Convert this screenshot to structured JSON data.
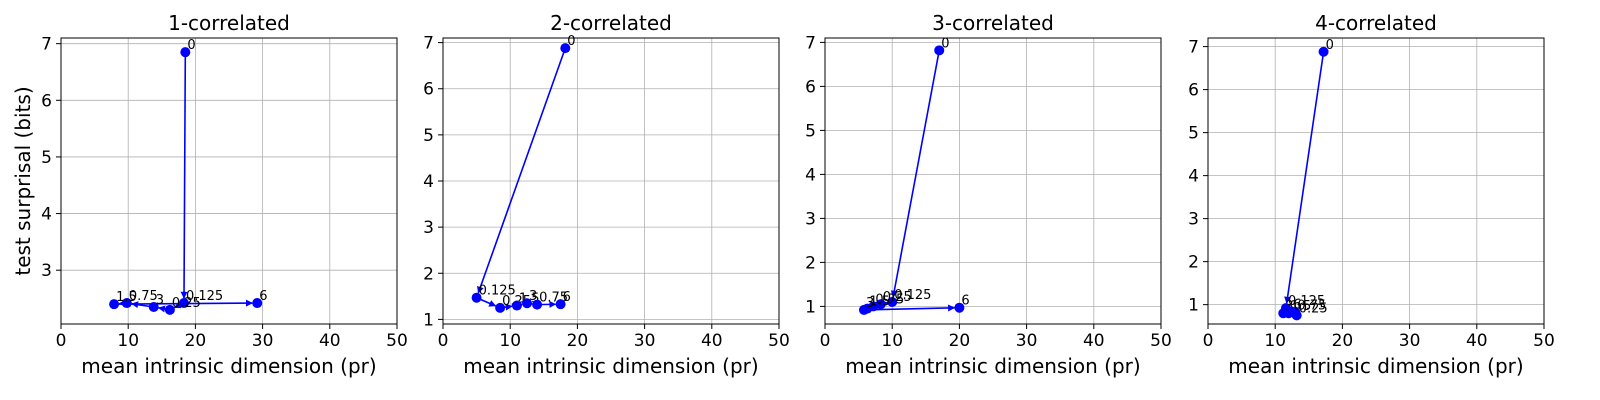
{
  "chart_data": [
    {
      "type": "scatter",
      "title": "1-correlated",
      "xlabel": "mean intrinsic dimension (pr)",
      "ylabel": "test surprisal (bits)",
      "xlim": [
        0,
        50
      ],
      "ylim": [
        2.05,
        7.1
      ],
      "xticks": [
        0,
        10,
        20,
        30,
        40,
        50
      ],
      "yticks": [
        3,
        4,
        5,
        6,
        7
      ],
      "grid": true,
      "color": "#0000ff",
      "points": [
        {
          "label": "0",
          "x": 18.5,
          "y": 6.85
        },
        {
          "label": "0.125",
          "x": 18.3,
          "y": 2.42
        },
        {
          "label": "0.25",
          "x": 16.2,
          "y": 2.3
        },
        {
          "label": "0.75",
          "x": 9.8,
          "y": 2.42
        },
        {
          "label": "1.5",
          "x": 7.9,
          "y": 2.4
        },
        {
          "label": "3",
          "x": 13.8,
          "y": 2.35
        },
        {
          "label": "6",
          "x": 29.2,
          "y": 2.42
        }
      ],
      "path": [
        {
          "from": "0",
          "to": "0.125"
        },
        {
          "from": "0.125",
          "to": "0.25"
        },
        {
          "from": "0.25",
          "to": "3"
        },
        {
          "from": "3",
          "to": "0.75"
        },
        {
          "from": "0.75",
          "to": "1.5"
        },
        {
          "from": "1.5",
          "to": "6"
        }
      ]
    },
    {
      "type": "scatter",
      "title": "2-correlated",
      "xlabel": "mean intrinsic dimension (pr)",
      "ylabel": "",
      "xlim": [
        0,
        50
      ],
      "ylim": [
        0.9,
        7.1
      ],
      "xticks": [
        0,
        10,
        20,
        30,
        40,
        50
      ],
      "yticks": [
        1,
        2,
        3,
        4,
        5,
        6,
        7
      ],
      "grid": true,
      "color": "#0000ff",
      "points": [
        {
          "label": "0",
          "x": 18.2,
          "y": 6.88
        },
        {
          "label": "0.125",
          "x": 5.0,
          "y": 1.47
        },
        {
          "label": "0.25",
          "x": 8.5,
          "y": 1.25
        },
        {
          "label": "1.5",
          "x": 11.0,
          "y": 1.3
        },
        {
          "label": "3",
          "x": 12.5,
          "y": 1.35
        },
        {
          "label": "0.75",
          "x": 14.0,
          "y": 1.32
        },
        {
          "label": "6",
          "x": 17.5,
          "y": 1.33
        }
      ],
      "path": [
        {
          "from": "0",
          "to": "0.125"
        },
        {
          "from": "0.125",
          "to": "0.25"
        },
        {
          "from": "0.25",
          "to": "1.5"
        },
        {
          "from": "1.5",
          "to": "3"
        },
        {
          "from": "3",
          "to": "0.75"
        },
        {
          "from": "0.75",
          "to": "6"
        }
      ]
    },
    {
      "type": "scatter",
      "title": "3-correlated",
      "xlabel": "mean intrinsic dimension (pr)",
      "ylabel": "",
      "xlim": [
        0,
        50
      ],
      "ylim": [
        0.6,
        7.1
      ],
      "xticks": [
        0,
        10,
        20,
        30,
        40,
        50
      ],
      "yticks": [
        1,
        2,
        3,
        4,
        5,
        6,
        7
      ],
      "grid": true,
      "color": "#0000ff",
      "points": [
        {
          "label": "0",
          "x": 17.0,
          "y": 6.82
        },
        {
          "label": "0.125",
          "x": 10.0,
          "y": 1.1
        },
        {
          "label": "0.25",
          "x": 8.3,
          "y": 1.05
        },
        {
          "label": "0.75",
          "x": 7.2,
          "y": 1.0
        },
        {
          "label": "1.5",
          "x": 6.3,
          "y": 0.95
        },
        {
          "label": "3",
          "x": 5.8,
          "y": 0.92
        },
        {
          "label": "6",
          "x": 20.0,
          "y": 0.97
        }
      ],
      "path": [
        {
          "from": "0",
          "to": "0.125"
        },
        {
          "from": "0.125",
          "to": "0.25"
        },
        {
          "from": "0.25",
          "to": "0.75"
        },
        {
          "from": "0.75",
          "to": "1.5"
        },
        {
          "from": "1.5",
          "to": "3"
        },
        {
          "from": "3",
          "to": "6"
        }
      ]
    },
    {
      "type": "scatter",
      "title": "4-correlated",
      "xlabel": "mean intrinsic dimension (pr)",
      "ylabel": "",
      "xlim": [
        0,
        50
      ],
      "ylim": [
        0.55,
        7.2
      ],
      "xticks": [
        0,
        10,
        20,
        30,
        40,
        50
      ],
      "yticks": [
        1,
        2,
        3,
        4,
        5,
        6,
        7
      ],
      "grid": true,
      "color": "#0000ff",
      "points": [
        {
          "label": "0",
          "x": 17.2,
          "y": 6.88
        },
        {
          "label": "0.125",
          "x": 11.6,
          "y": 0.92
        },
        {
          "label": "0.25",
          "x": 13.2,
          "y": 0.75
        },
        {
          "label": "0.75",
          "x": 13.0,
          "y": 0.82
        },
        {
          "label": "1.5",
          "x": 12.0,
          "y": 0.8
        },
        {
          "label": "3",
          "x": 11.2,
          "y": 0.8
        },
        {
          "label": "6",
          "x": 12.4,
          "y": 0.84
        }
      ],
      "path": [
        {
          "from": "0",
          "to": "0.125"
        },
        {
          "from": "0.125",
          "to": "0.25"
        },
        {
          "from": "0.25",
          "to": "0.75"
        },
        {
          "from": "0.75",
          "to": "1.5"
        },
        {
          "from": "1.5",
          "to": "3"
        },
        {
          "from": "3",
          "to": "6"
        }
      ]
    }
  ]
}
